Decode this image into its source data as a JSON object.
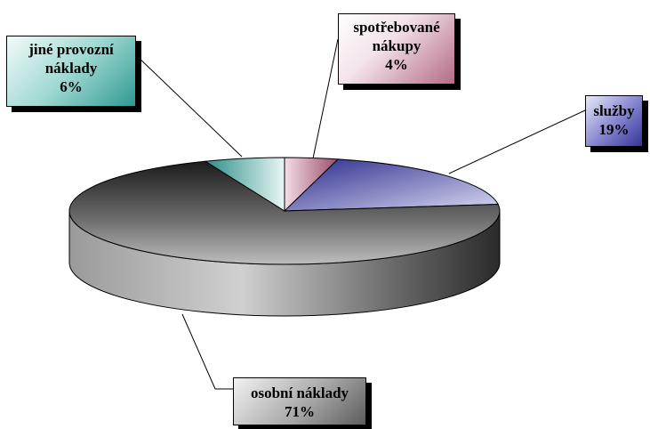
{
  "chart_data": {
    "type": "pie",
    "style": "3d",
    "slices": [
      {
        "label": "spotřebované nákupy",
        "value": 4,
        "value_label": "4%",
        "color": "#a85a78"
      },
      {
        "label": "služby",
        "value": 19,
        "value_label": "19%",
        "color": "#3a3a9a"
      },
      {
        "label": "osobní náklady",
        "value": 71,
        "value_label": "71%",
        "color": "#6e6e6e"
      },
      {
        "label": "jiné provozní náklady",
        "value": 6,
        "value_label": "6%",
        "color": "#3f9f97"
      }
    ],
    "legend": "none",
    "data_labels": "callouts"
  }
}
